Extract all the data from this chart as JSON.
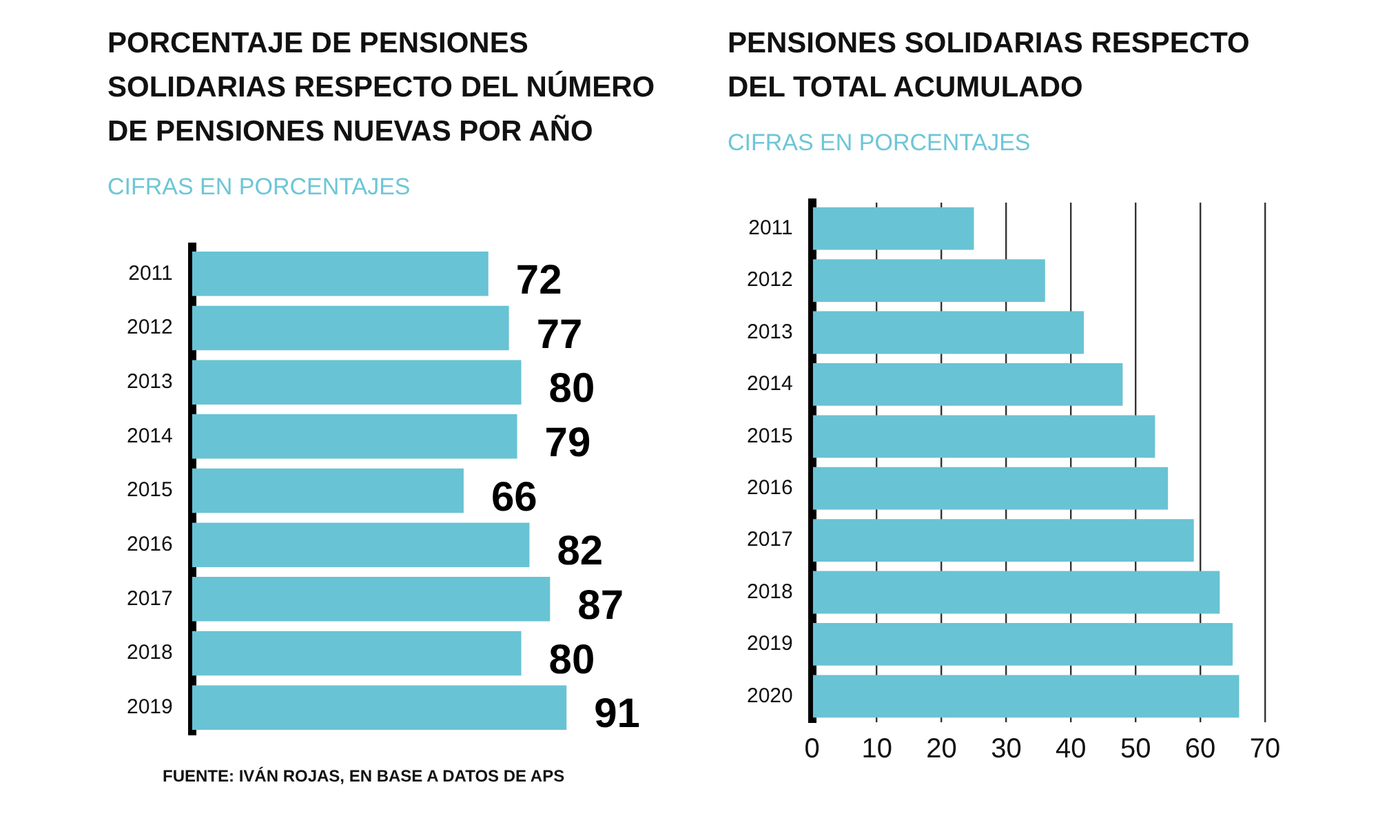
{
  "chart_data": [
    {
      "type": "bar",
      "orientation": "horizontal",
      "title": "PORCENTAJE DE PENSIONES SOLIDARIAS RESPECTO DEL NÚMERO DE PENSIONES NUEVAS POR AÑO",
      "subtitle": "CIFRAS EN PORCENTAJES",
      "categories": [
        "2011",
        "2012",
        "2013",
        "2014",
        "2015",
        "2016",
        "2017",
        "2018",
        "2019"
      ],
      "values": [
        72,
        77,
        80,
        79,
        66,
        82,
        87,
        80,
        91
      ],
      "color": "#68c3d4",
      "data_labels": true,
      "tick_labels": "y",
      "grid": false,
      "annotations": [
        "FUENTE: IVÁN ROJAS, EN BASE A DATOS DE APS"
      ]
    },
    {
      "type": "bar",
      "orientation": "horizontal",
      "title": "PENSIONES SOLIDARIAS RESPECTO DEL TOTAL ACUMULADO",
      "subtitle": "CIFRAS EN PORCENTAJES",
      "categories": [
        "2011",
        "2012",
        "2013",
        "2014",
        "2015",
        "2016",
        "2017",
        "2018",
        "2019",
        "2020"
      ],
      "values": [
        25,
        36,
        42,
        48,
        53,
        55,
        59,
        63,
        65,
        66
      ],
      "color": "#68c3d4",
      "xlim": [
        0,
        70
      ],
      "xticks": [
        0,
        10,
        20,
        30,
        40,
        50,
        60,
        70
      ],
      "grid": "x"
    }
  ]
}
